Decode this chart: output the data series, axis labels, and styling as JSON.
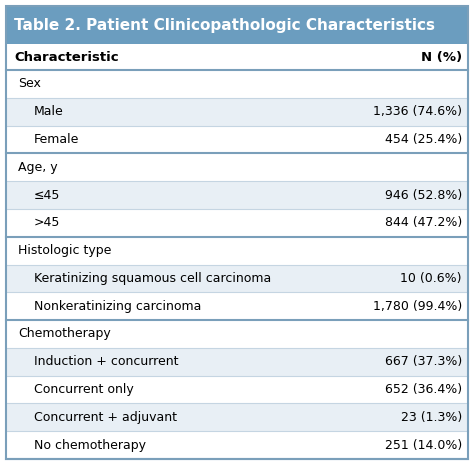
{
  "title": "Table 2. Patient Clinicopathologic Characteristics",
  "title_bg": "#6b9dbf",
  "title_color": "#ffffff",
  "header_row": [
    "Characteristic",
    "N (%)"
  ],
  "rows": [
    {
      "label": "Sex",
      "value": "",
      "indent": false,
      "category": true
    },
    {
      "label": "Male",
      "value": "1,336 (74.6%)",
      "indent": true,
      "category": false
    },
    {
      "label": "Female",
      "value": "454 (25.4%)",
      "indent": true,
      "category": false
    },
    {
      "label": "Age, y",
      "value": "",
      "indent": false,
      "category": true
    },
    {
      "label": "≤45",
      "value": "946 (52.8%)",
      "indent": true,
      "category": false
    },
    {
      "label": ">45",
      "value": "844 (47.2%)",
      "indent": true,
      "category": false
    },
    {
      "label": "Histologic type",
      "value": "",
      "indent": false,
      "category": true
    },
    {
      "label": "Keratinizing squamous cell carcinoma",
      "value": "10 (0.6%)",
      "indent": true,
      "category": false
    },
    {
      "label": "Nonkeratinizing carcinoma",
      "value": "1,780 (99.4%)",
      "indent": true,
      "category": false
    },
    {
      "label": "Chemotherapy",
      "value": "",
      "indent": false,
      "category": true
    },
    {
      "label": "Induction + concurrent",
      "value": "667 (37.3%)",
      "indent": true,
      "category": false
    },
    {
      "label": "Concurrent only",
      "value": "652 (36.4%)",
      "indent": true,
      "category": false
    },
    {
      "label": "Concurrent + adjuvant",
      "value": "23 (1.3%)",
      "indent": true,
      "category": false
    },
    {
      "label": "No chemotherapy",
      "value": "251 (14.0%)",
      "indent": true,
      "category": false
    }
  ],
  "outer_border_color": "#7a9fba",
  "divider_light": "#c5d5e2",
  "divider_heavy": "#7a9fba",
  "stripe_bg": "#e8eff5",
  "white_bg": "#ffffff",
  "font_size": 9.0,
  "title_font_size": 11.0,
  "header_font_size": 9.5,
  "fig_width": 4.74,
  "fig_height": 4.65,
  "dpi": 100
}
